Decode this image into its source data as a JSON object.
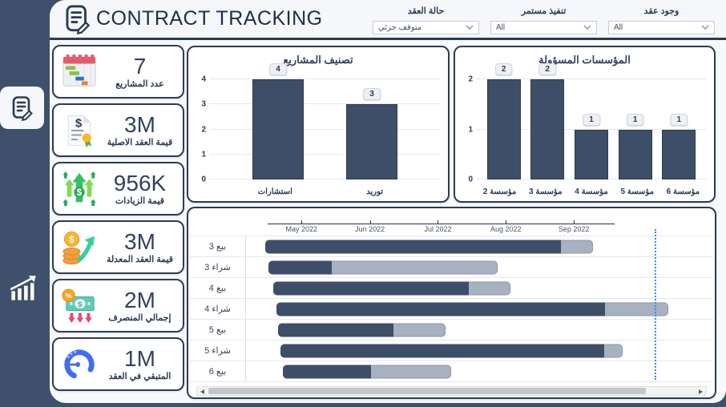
{
  "header": {
    "title": "CONTRACT TRACKING",
    "filters": [
      {
        "label": "حالة العقد",
        "value": "متوقف جزئي"
      },
      {
        "label": "تنفيذ مستمر",
        "value": "All"
      },
      {
        "label": "وجود عقد",
        "value": "All"
      }
    ]
  },
  "kpis": [
    {
      "value": "7",
      "label": "عدد المشاريع",
      "icon": "gantt-calendar-icon"
    },
    {
      "value": "3M",
      "label": "قيمة العقد الاصلية",
      "icon": "contract-seal-icon"
    },
    {
      "value": "956K",
      "label": "قيمة الزيادات",
      "icon": "growth-arrows-icon"
    },
    {
      "value": "3M",
      "label": "قيمة العقد المعدلة",
      "icon": "coins-arrow-icon"
    },
    {
      "value": "2M",
      "label": "إجمالي المنصرف",
      "icon": "money-percent-icon"
    },
    {
      "value": "1M",
      "label": "المتبقي في العقد",
      "icon": "progress-ring-icon"
    }
  ],
  "colors": {
    "navy": "#2b3a55",
    "bar_dark": "#3d4e68",
    "bar_gray": "#a8b1c0",
    "today_line": "#2e8ef7"
  },
  "chart_data": [
    {
      "id": "projects-classification",
      "type": "bar",
      "title": "تصنيف المشاريع",
      "categories": [
        "استشارات",
        "توريد"
      ],
      "values": [
        4,
        3
      ],
      "ylim": [
        0,
        4
      ],
      "yticks": [
        0,
        1,
        2,
        3,
        4
      ],
      "grid": "dotted",
      "legend": "none",
      "bar_color": "#3d4e68"
    },
    {
      "id": "responsible-institutions",
      "type": "bar",
      "title": "المؤسسات المسؤولة",
      "categories": [
        "مؤسسة 2",
        "مؤسسة 3",
        "مؤسسة 4",
        "مؤسسة 5",
        "مؤسسة 6"
      ],
      "values": [
        2,
        2,
        1,
        1,
        1
      ],
      "ylim": [
        0,
        2
      ],
      "yticks": [
        0,
        1,
        2
      ],
      "grid": "dotted",
      "legend": "none",
      "bar_color": "#3d4e68"
    },
    {
      "id": "contracts-timeline",
      "type": "gantt",
      "months": [
        {
          "label": "May 2022",
          "pct": 12.0
        },
        {
          "label": "Jun 2022",
          "pct": 26.8
        },
        {
          "label": "Jul 2022",
          "pct": 41.5
        },
        {
          "label": "Aug 2022",
          "pct": 56.2
        },
        {
          "label": "Sep 2022",
          "pct": 70.9
        }
      ],
      "axis_span_pct": [
        4.6,
        79.8
      ],
      "today_line_pct": 87.7,
      "tasks": [
        {
          "label": "بيع 3",
          "start_pct": 4.1,
          "split_pct": 67.4,
          "end_pct": 74.2,
          "start_est": "2022-04-15",
          "progress_end_est": "2022-08-23",
          "end_est": "2022-09-06"
        },
        {
          "label": "شراء 3",
          "start_pct": 4.8,
          "split_pct": 18.3,
          "end_pct": 53.8,
          "start_est": "2022-04-16",
          "progress_end_est": "2022-05-13",
          "end_est": "2022-07-25"
        },
        {
          "label": "بيع 4",
          "start_pct": 5.8,
          "split_pct": 47.7,
          "end_pct": 56.6,
          "start_est": "2022-04-18",
          "progress_end_est": "2022-07-13",
          "end_est": "2022-08-01"
        },
        {
          "label": "شراء 4",
          "start_pct": 6.5,
          "split_pct": 76.9,
          "end_pct": 90.4,
          "start_est": "2022-04-19",
          "progress_end_est": "2022-09-12",
          "end_est": "2022-10-09"
        },
        {
          "label": "بيع 5",
          "start_pct": 6.8,
          "split_pct": 31.5,
          "end_pct": 42.7,
          "start_est": "2022-04-20",
          "progress_end_est": "2022-06-10",
          "end_est": "2022-07-03"
        },
        {
          "label": "شراء 5",
          "start_pct": 7.4,
          "split_pct": 76.6,
          "end_pct": 80.7,
          "start_est": "2022-04-21",
          "progress_end_est": "2022-09-11",
          "end_est": "2022-09-20"
        },
        {
          "label": "بيع 6",
          "start_pct": 7.9,
          "split_pct": 26.8,
          "end_pct": 43.9,
          "start_est": "2022-04-22",
          "progress_end_est": "2022-05-31",
          "end_est": "2022-07-04"
        }
      ]
    }
  ]
}
